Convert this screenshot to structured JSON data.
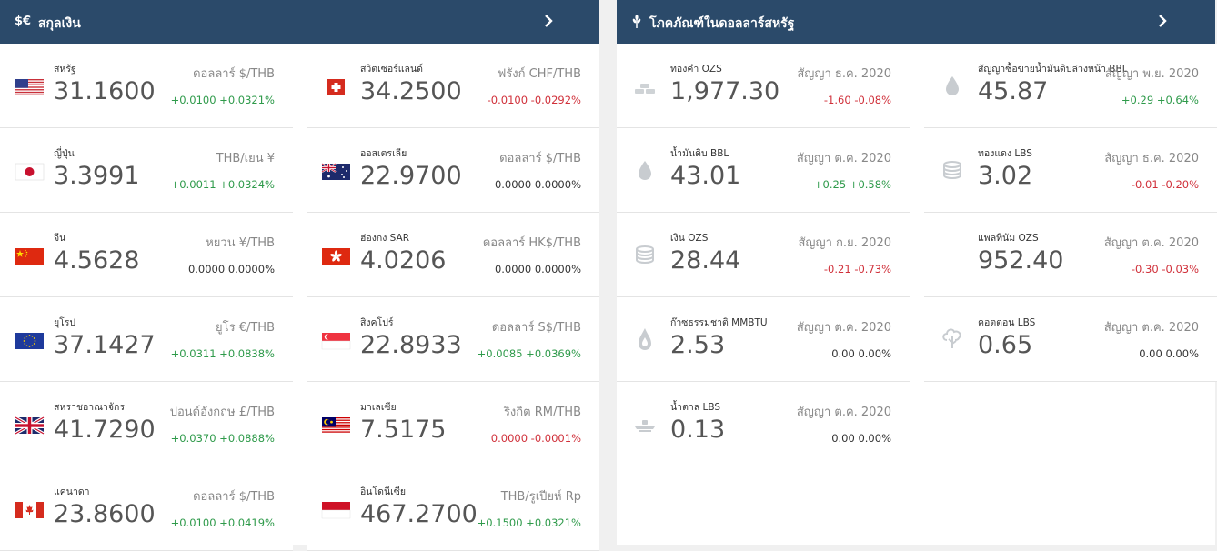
{
  "currency": {
    "header_icon": "$€",
    "title": "สกุลเงิน",
    "items": [
      {
        "flag": "us-flag",
        "name": "สหรัฐ",
        "value": "31.1600",
        "unit": "ดอลลาร์ $/THB",
        "change": "+0.0100 +0.0321%",
        "dir": "pos"
      },
      {
        "flag": "ch-flag",
        "name": "สวิตเซอร์แลนด์",
        "value": "34.2500",
        "unit": "ฟรังก์ CHF/THB",
        "change": "-0.0100 -0.0292%",
        "dir": "neg"
      },
      {
        "flag": "jp-flag",
        "name": "ญี่ปุ่น",
        "value": "3.3991",
        "unit": "THB/เยน ¥",
        "change": "+0.0011 +0.0324%",
        "dir": "pos"
      },
      {
        "flag": "au-flag",
        "name": "ออสเตรเลีย",
        "value": "22.9700",
        "unit": "ดอลลาร์ $/THB",
        "change": "0.0000 0.0000%",
        "dir": "neu"
      },
      {
        "flag": "cn-flag",
        "name": "จีน",
        "value": "4.5628",
        "unit": "หยวน ¥/THB",
        "change": "0.0000 0.0000%",
        "dir": "neu"
      },
      {
        "flag": "hk-flag",
        "name": "ฮ่องกง SAR",
        "value": "4.0206",
        "unit": "ดอลลาร์ HK$/THB",
        "change": "0.0000 0.0000%",
        "dir": "neu"
      },
      {
        "flag": "eu-flag",
        "name": "ยุโรป",
        "value": "37.1427",
        "unit": "ยูโร €/THB",
        "change": "+0.0311 +0.0838%",
        "dir": "pos"
      },
      {
        "flag": "sg-flag",
        "name": "สิงคโปร์",
        "value": "22.8933",
        "unit": "ดอลลาร์ S$/THB",
        "change": "+0.0085 +0.0369%",
        "dir": "pos"
      },
      {
        "flag": "uk-flag",
        "name": "สหราชอาณาจักร",
        "value": "41.7290",
        "unit": "ปอนด์อังกฤษ £/THB",
        "change": "+0.0370 +0.0888%",
        "dir": "pos"
      },
      {
        "flag": "my-flag",
        "name": "มาเลเซีย",
        "value": "7.5175",
        "unit": "ริงกิต RM/THB",
        "change": "0.0000 -0.0001%",
        "dir": "neg"
      },
      {
        "flag": "ca-flag",
        "name": "แคนาดา",
        "value": "23.8600",
        "unit": "ดอลลาร์ $/THB",
        "change": "+0.0100 +0.0419%",
        "dir": "pos"
      },
      {
        "flag": "id-flag",
        "name": "อินโดนีเซีย",
        "value": "467.2700",
        "unit": "THB/รูเปียห์ Rp",
        "change": "+0.1500 +0.0321%",
        "dir": "pos"
      }
    ]
  },
  "commodity": {
    "header_icon": "wheat-icon",
    "title": "โภคภัณฑ์ในดอลลาร์สหรัฐ",
    "items": [
      {
        "icon": "gold-bars-icon",
        "name": "ทองคำ OZS",
        "value": "1,977.30",
        "unit": "สัญญา ธ.ค. 2020",
        "change": "-1.60 -0.08%",
        "dir": "neg"
      },
      {
        "icon": "oil-drop-icon",
        "name": "สัญญาซื้อขายน้ำมันดิบล่วงหน้า BBL",
        "value": "45.87",
        "unit": "สัญญา พ.ย. 2020",
        "change": "+0.29 +0.64%",
        "dir": "pos"
      },
      {
        "icon": "oil-drop-icon",
        "name": "น้ำมันดิบ BBL",
        "value": "43.01",
        "unit": "สัญญา ต.ค. 2020",
        "change": "+0.25 +0.58%",
        "dir": "pos"
      },
      {
        "icon": "coin-stack-icon",
        "name": "ทองแดง LBS",
        "value": "3.02",
        "unit": "สัญญา ธ.ค. 2020",
        "change": "-0.01 -0.20%",
        "dir": "neg"
      },
      {
        "icon": "coin-stack-icon",
        "name": "เงิน OZS",
        "value": "28.44",
        "unit": "สัญญา ก.ย. 2020",
        "change": "-0.21 -0.73%",
        "dir": "neg"
      },
      {
        "icon": "none",
        "name": "แพลทินัม OZS",
        "value": "952.40",
        "unit": "สัญญา ต.ค. 2020",
        "change": "-0.30 -0.03%",
        "dir": "neg"
      },
      {
        "icon": "flame-icon",
        "name": "ก๊าซธรรมชาติ MMBTU",
        "value": "2.53",
        "unit": "สัญญา ต.ค. 2020",
        "change": "0.00 0.00%",
        "dir": "neu"
      },
      {
        "icon": "cotton-icon",
        "name": "คอตตอน LBS",
        "value": "0.65",
        "unit": "สัญญา ต.ค. 2020",
        "change": "0.00 0.00%",
        "dir": "neu"
      },
      {
        "icon": "sugar-icon",
        "name": "น้ำตาล LBS",
        "value": "0.13",
        "unit": "สัญญา ต.ค. 2020",
        "change": "0.00 0.00%",
        "dir": "neu"
      }
    ]
  }
}
